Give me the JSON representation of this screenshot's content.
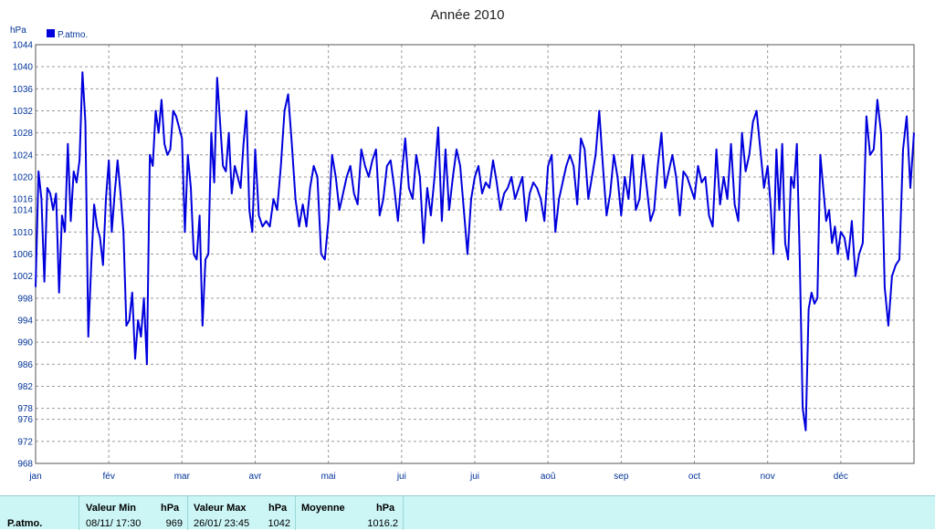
{
  "chart_data": {
    "type": "line",
    "title": "Année 2010",
    "ylabel": "hPa",
    "ylim": [
      968,
      1044
    ],
    "yticks": [
      968,
      972,
      976,
      978,
      982,
      986,
      990,
      994,
      998,
      1002,
      1006,
      1010,
      1014,
      1016,
      1020,
      1024,
      1028,
      1032,
      1036,
      1040,
      1044
    ],
    "xlim": [
      0,
      12
    ],
    "categories": [
      "jan",
      "fév",
      "mar",
      "avr",
      "mai",
      "jui",
      "jui",
      "aoû",
      "sep",
      "oct",
      "nov",
      "déc"
    ],
    "grid": true,
    "legend": "top-left",
    "series": [
      {
        "name": "P.atmo.",
        "color": "#0000dd",
        "x": [
          0.0,
          0.04,
          0.08,
          0.12,
          0.16,
          0.2,
          0.24,
          0.28,
          0.32,
          0.36,
          0.4,
          0.44,
          0.48,
          0.52,
          0.56,
          0.6,
          0.64,
          0.68,
          0.72,
          0.76,
          0.8,
          0.84,
          0.88,
          0.92,
          0.96,
          1.0,
          1.04,
          1.08,
          1.12,
          1.16,
          1.2,
          1.24,
          1.28,
          1.32,
          1.36,
          1.4,
          1.44,
          1.48,
          1.52,
          1.56,
          1.6,
          1.64,
          1.68,
          1.72,
          1.76,
          1.8,
          1.84,
          1.88,
          1.92,
          2.0,
          2.04,
          2.08,
          2.12,
          2.16,
          2.2,
          2.24,
          2.28,
          2.32,
          2.36,
          2.4,
          2.44,
          2.48,
          2.52,
          2.56,
          2.6,
          2.64,
          2.68,
          2.72,
          2.76,
          2.8,
          2.84,
          2.88,
          2.92,
          2.96,
          3.0,
          3.05,
          3.1,
          3.15,
          3.2,
          3.25,
          3.3,
          3.35,
          3.4,
          3.45,
          3.5,
          3.55,
          3.6,
          3.65,
          3.7,
          3.75,
          3.8,
          3.85,
          3.9,
          3.95,
          4.0,
          4.05,
          4.1,
          4.15,
          4.2,
          4.25,
          4.3,
          4.35,
          4.4,
          4.45,
          4.5,
          4.55,
          4.6,
          4.65,
          4.7,
          4.75,
          4.8,
          4.85,
          4.9,
          4.95,
          5.0,
          5.05,
          5.1,
          5.15,
          5.2,
          5.25,
          5.3,
          5.35,
          5.4,
          5.45,
          5.5,
          5.55,
          5.6,
          5.65,
          5.7,
          5.75,
          5.8,
          5.85,
          5.9,
          5.95,
          6.0,
          6.05,
          6.1,
          6.15,
          6.2,
          6.25,
          6.3,
          6.35,
          6.4,
          6.45,
          6.5,
          6.55,
          6.6,
          6.65,
          6.7,
          6.75,
          6.8,
          6.85,
          6.9,
          6.95,
          7.0,
          7.05,
          7.1,
          7.15,
          7.2,
          7.25,
          7.3,
          7.35,
          7.4,
          7.45,
          7.5,
          7.55,
          7.6,
          7.65,
          7.7,
          7.75,
          7.8,
          7.85,
          7.9,
          7.95,
          8.0,
          8.05,
          8.1,
          8.15,
          8.2,
          8.25,
          8.3,
          8.35,
          8.4,
          8.45,
          8.5,
          8.55,
          8.6,
          8.65,
          8.7,
          8.75,
          8.8,
          8.85,
          8.9,
          8.95,
          9.0,
          9.05,
          9.1,
          9.15,
          9.2,
          9.25,
          9.3,
          9.35,
          9.4,
          9.45,
          9.5,
          9.55,
          9.6,
          9.65,
          9.7,
          9.75,
          9.8,
          9.85,
          9.9,
          9.95,
          10.0,
          10.04,
          10.08,
          10.12,
          10.16,
          10.2,
          10.24,
          10.28,
          10.32,
          10.36,
          10.4,
          10.44,
          10.48,
          10.52,
          10.56,
          10.6,
          10.64,
          10.68,
          10.72,
          10.76,
          10.8,
          10.84,
          10.88,
          10.92,
          10.96,
          11.0,
          11.05,
          11.1,
          11.15,
          11.2,
          11.25,
          11.3,
          11.35,
          11.4,
          11.45,
          11.5,
          11.55,
          11.6,
          11.65,
          11.7,
          11.75,
          11.8,
          11.85,
          11.9,
          11.95,
          12.0
        ],
        "values": [
          1000,
          1021,
          1016,
          1001,
          1018,
          1017,
          1014,
          1017,
          999,
          1013,
          1010,
          1026,
          1012,
          1021,
          1019,
          1023,
          1039,
          1030,
          991,
          1004,
          1015,
          1011,
          1009,
          1004,
          1016,
          1023,
          1010,
          1017,
          1023,
          1017,
          1010,
          993,
          994,
          999,
          987,
          994,
          991,
          998,
          986,
          1024,
          1022,
          1032,
          1028,
          1034,
          1026,
          1024,
          1025,
          1032,
          1031,
          1027,
          1010,
          1024,
          1018,
          1006,
          1005,
          1013,
          993,
          1005,
          1006,
          1028,
          1019,
          1038,
          1030,
          1022,
          1021,
          1028,
          1017,
          1022,
          1020,
          1018,
          1026,
          1032,
          1014,
          1010,
          1025,
          1013,
          1011,
          1012,
          1011,
          1016,
          1014,
          1022,
          1032,
          1035,
          1026,
          1016,
          1011,
          1015,
          1011,
          1018,
          1022,
          1020,
          1006,
          1005,
          1012,
          1024,
          1020,
          1014,
          1017,
          1020,
          1022,
          1017,
          1015,
          1025,
          1022,
          1020,
          1023,
          1025,
          1013,
          1016,
          1022,
          1023,
          1018,
          1012,
          1020,
          1027,
          1018,
          1016,
          1024,
          1020,
          1008,
          1018,
          1013,
          1020,
          1029,
          1012,
          1025,
          1014,
          1020,
          1025,
          1022,
          1014,
          1006,
          1016,
          1020,
          1022,
          1017,
          1019,
          1018,
          1023,
          1019,
          1014,
          1017,
          1018,
          1020,
          1016,
          1018,
          1020,
          1012,
          1017,
          1019,
          1018,
          1016,
          1012,
          1022,
          1024,
          1010,
          1016,
          1019,
          1022,
          1024,
          1022,
          1015,
          1027,
          1025,
          1016,
          1020,
          1024,
          1032,
          1022,
          1013,
          1017,
          1024,
          1020,
          1013,
          1020,
          1016,
          1024,
          1014,
          1016,
          1024,
          1018,
          1012,
          1014,
          1022,
          1028,
          1018,
          1021,
          1024,
          1020,
          1013,
          1021,
          1020,
          1018,
          1016,
          1022,
          1019,
          1020,
          1013,
          1011,
          1025,
          1015,
          1020,
          1016,
          1026,
          1015,
          1012,
          1028,
          1021,
          1024,
          1030,
          1032,
          1025,
          1018,
          1022,
          1015,
          1006,
          1025,
          1014,
          1026,
          1008,
          1005,
          1020,
          1018,
          1026,
          1005,
          978,
          974,
          996,
          999,
          997,
          998,
          1024,
          1018,
          1012,
          1014,
          1008,
          1011,
          1006,
          1010,
          1009,
          1005,
          1012,
          1002,
          1006,
          1008,
          1031,
          1024,
          1025,
          1034,
          1028,
          1000,
          993,
          1002,
          1004,
          1005,
          1025,
          1031,
          1018,
          1028
        ]
      }
    ]
  },
  "stats": {
    "series_label": "P.atmo.",
    "min_header": "Valeur Min",
    "min_unit": "hPa",
    "min_date": "08/11/  17:30",
    "min_value": "969",
    "max_header": "Valeur Max",
    "max_unit": "hPa",
    "max_date": "26/01/  23:45",
    "max_value": "1042",
    "avg_header": "Moyenne",
    "avg_unit": "hPa",
    "avg_value": "1016.2"
  }
}
